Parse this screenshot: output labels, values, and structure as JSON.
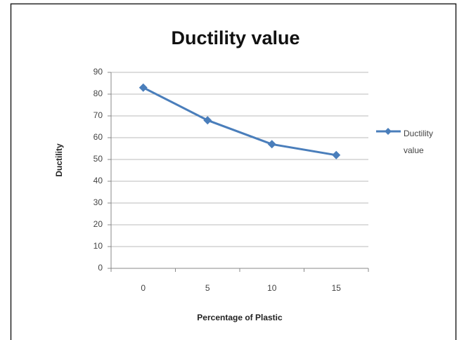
{
  "chart_data": {
    "type": "line",
    "title": "Ductility value",
    "x_label": "Percentage of Plastic",
    "y_label": "Ductility",
    "categories": [
      "0",
      "5",
      "10",
      "15"
    ],
    "series": [
      {
        "name": "Ductility value",
        "color": "#4a7ebb",
        "values": [
          83,
          68,
          57,
          52
        ]
      }
    ],
    "ylim": [
      0,
      90
    ],
    "yticks": [
      0,
      10,
      20,
      30,
      40,
      50,
      60,
      70,
      80,
      90
    ],
    "grid": true,
    "legend": "right"
  }
}
